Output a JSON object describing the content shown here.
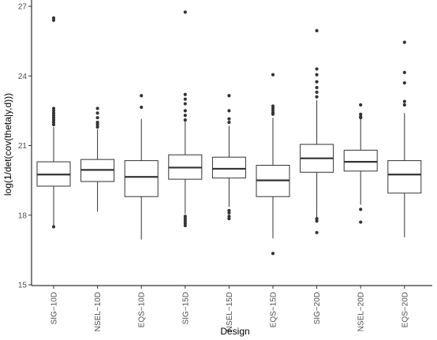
{
  "chart_data": {
    "type": "boxplot",
    "xlabel": "Design",
    "ylabel": "log(1/det(cov(theta|y,d)))",
    "ylim": [
      15,
      27
    ],
    "yticks": [
      15,
      18,
      21,
      24,
      27
    ],
    "ytick_labels": [
      "15",
      "18",
      "21",
      "24",
      "27"
    ],
    "grid": false,
    "categories": [
      "SIG−10D",
      "NSEL−10D",
      "EQS−10D",
      "SIG−15D",
      "NSEL−15D",
      "EQS−15D",
      "SIG−20D",
      "NSEL−20D",
      "EQS−20D"
    ],
    "series": [
      {
        "category": "SIG−10D",
        "lower_whisker": 17.55,
        "q1": 19.25,
        "median": 19.75,
        "q3": 20.3,
        "upper_whisker": 21.8,
        "outliers": [
          26.5,
          26.4,
          22.6,
          22.5,
          22.4,
          22.3,
          22.2,
          22.1,
          22.0,
          21.9,
          17.5
        ]
      },
      {
        "category": "NSEL−10D",
        "lower_whisker": 18.15,
        "q1": 19.45,
        "median": 19.95,
        "q3": 20.4,
        "upper_whisker": 21.7,
        "outliers": [
          22.6,
          22.4,
          22.2,
          22.0,
          21.9,
          21.8
        ]
      },
      {
        "category": "EQS−10D",
        "lower_whisker": 16.95,
        "q1": 18.8,
        "median": 19.65,
        "q3": 20.35,
        "upper_whisker": 22.15,
        "outliers": [
          23.15,
          22.65
        ]
      },
      {
        "category": "SIG−15D",
        "lower_whisker": 18.05,
        "q1": 19.55,
        "median": 20.05,
        "q3": 20.6,
        "upper_whisker": 22.05,
        "outliers": [
          26.75,
          23.2,
          23.0,
          22.8,
          22.5,
          22.3,
          22.1,
          17.95,
          17.85,
          17.75,
          17.65,
          17.55
        ]
      },
      {
        "category": "NSEL−15D",
        "lower_whisker": 18.35,
        "q1": 19.6,
        "median": 20.0,
        "q3": 20.5,
        "upper_whisker": 21.85,
        "outliers": [
          23.15,
          22.5,
          22.15,
          22.0,
          18.2,
          18.1,
          17.95,
          17.85
        ]
      },
      {
        "category": "EQS−15D",
        "lower_whisker": 17.0,
        "q1": 18.8,
        "median": 19.5,
        "q3": 20.15,
        "upper_whisker": 22.2,
        "outliers": [
          24.05,
          22.7,
          22.6,
          22.5,
          22.4,
          22.35,
          16.35
        ]
      },
      {
        "category": "SIG−20D",
        "lower_whisker": 17.9,
        "q1": 19.85,
        "median": 20.45,
        "q3": 21.05,
        "upper_whisker": 22.95,
        "outliers": [
          25.95,
          24.3,
          24.05,
          23.75,
          23.5,
          23.3,
          23.1,
          17.85,
          17.75,
          17.25
        ]
      },
      {
        "category": "NSEL−20D",
        "lower_whisker": 18.45,
        "q1": 19.9,
        "median": 20.3,
        "q3": 20.8,
        "upper_whisker": 22.15,
        "outliers": [
          22.75,
          22.35,
          22.25,
          22.2,
          18.25,
          17.7
        ]
      },
      {
        "category": "EQS−20D",
        "lower_whisker": 17.05,
        "q1": 18.95,
        "median": 19.75,
        "q3": 20.35,
        "upper_whisker": 22.4,
        "outliers": [
          25.45,
          24.15,
          23.7,
          22.9,
          22.75
        ]
      }
    ]
  }
}
